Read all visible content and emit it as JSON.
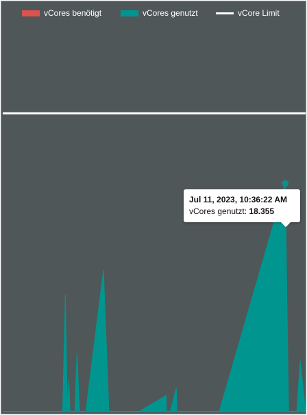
{
  "chart_data": {
    "type": "area",
    "series": [
      {
        "name": "vCores benötigt",
        "kind": "area",
        "color": "#d9534f",
        "values": []
      },
      {
        "name": "vCores genutzt",
        "kind": "area",
        "color": "#00968f",
        "points": [
          [
            0,
            0
          ],
          [
            85,
            0
          ],
          [
            88,
            0
          ],
          [
            92,
            9.4
          ],
          [
            95,
            0
          ],
          [
            97,
            2.5
          ],
          [
            99,
            0
          ],
          [
            106,
            0
          ],
          [
            109,
            4.7
          ],
          [
            113,
            0
          ],
          [
            118,
            0
          ],
          [
            122,
            0
          ],
          [
            148,
            11.4
          ],
          [
            156,
            0
          ],
          [
            200,
            0
          ],
          [
            240,
            1.3
          ],
          [
            240.5,
            0
          ],
          [
            246,
            0
          ],
          [
            255,
            1.9
          ],
          [
            256,
            0
          ],
          [
            262,
            0
          ],
          [
            297,
            0
          ],
          [
            318,
            0
          ],
          [
            415,
            18.355
          ],
          [
            420,
            0
          ],
          [
            432,
            0
          ],
          [
            437,
            4.1
          ],
          [
            445,
            0
          ]
        ]
      },
      {
        "name": "vCore Limit",
        "kind": "line",
        "color": "#ffffff",
        "value": 24
      }
    ],
    "ylim": [
      0,
      33
    ],
    "tooltip": {
      "title": "Jul 11, 2023, 10:36:22 AM",
      "series_label": "vCores genutzt:",
      "value": "18.355"
    }
  }
}
